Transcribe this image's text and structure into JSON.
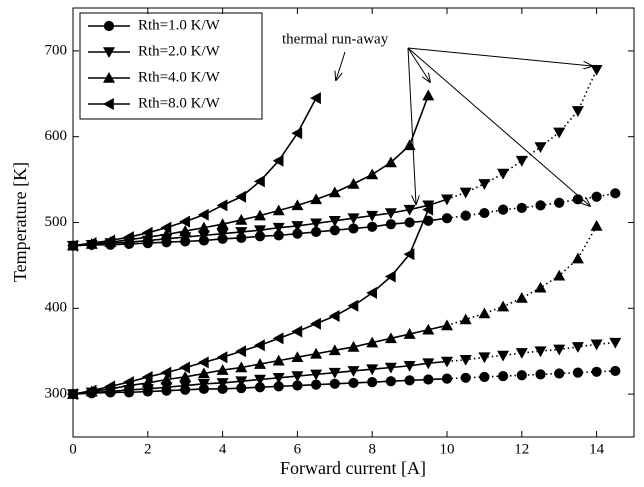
{
  "chart_data": {
    "type": "line",
    "x_label": "Forward current [A]",
    "y_label": "Temperature [K]",
    "annotation": "thermal run-away",
    "legend": "upper left",
    "color": "#000000",
    "dotted_after": 10,
    "x": [
      0,
      0.5,
      1,
      1.5,
      2,
      2.5,
      3,
      3.5,
      4,
      4.5,
      5,
      5.5,
      6,
      6.5,
      7,
      7.5,
      8,
      8.5,
      9,
      9.5,
      10,
      10.5,
      11,
      11.5,
      12,
      12.5,
      13,
      13.5,
      14,
      14.5
    ],
    "xlim": [
      0,
      15
    ],
    "ylim": [
      250,
      750
    ],
    "xticks": [
      0,
      2,
      4,
      6,
      8,
      10,
      12,
      14
    ],
    "yticks": [
      300,
      400,
      500,
      600,
      700
    ],
    "series": [
      {
        "name": "Rth=1.0 K/W",
        "marker": "circle",
        "curves": [
          [
            300,
            301,
            302,
            302,
            303,
            304,
            305,
            306,
            306,
            307,
            308,
            309,
            310,
            311,
            312,
            313,
            314,
            315,
            316,
            317,
            318,
            319,
            320,
            321,
            322,
            323,
            324,
            325,
            326,
            327
          ],
          [
            473,
            474,
            474,
            475,
            476,
            477,
            478,
            479,
            481,
            482,
            484,
            485,
            487,
            489,
            491,
            493,
            495,
            498,
            500,
            502,
            505,
            508,
            511,
            515,
            517,
            520,
            523,
            527,
            530,
            534
          ]
        ]
      },
      {
        "name": "Rth=2.0 K/W",
        "marker": "triangle-down",
        "curves": [
          [
            300,
            302,
            303,
            305,
            306,
            308,
            310,
            312,
            313,
            315,
            317,
            319,
            321,
            323,
            325,
            327,
            329,
            331,
            333,
            336,
            338,
            340,
            343,
            345,
            348,
            350,
            352,
            355,
            358,
            360
          ],
          [
            473,
            474,
            476,
            477,
            479,
            481,
            483,
            485,
            487,
            489,
            491,
            494,
            496,
            499,
            502,
            505,
            508,
            511,
            515,
            520,
            527,
            535,
            545,
            557,
            572,
            588,
            605,
            630,
            678,
            null
          ]
        ]
      },
      {
        "name": "Rth=4.0 K/W",
        "marker": "triangle-up",
        "curves": [
          [
            300,
            303,
            306,
            310,
            313,
            317,
            320,
            324,
            328,
            331,
            335,
            339,
            343,
            347,
            351,
            355,
            360,
            365,
            370,
            375,
            380,
            387,
            394,
            402,
            412,
            424,
            438,
            458,
            496,
            null
          ],
          [
            473,
            475,
            477,
            480,
            483,
            486,
            490,
            494,
            498,
            503,
            508,
            514,
            520,
            527,
            535,
            545,
            556,
            570,
            590,
            648,
            null,
            null,
            null,
            null,
            null,
            null,
            null,
            null,
            null,
            null
          ]
        ]
      },
      {
        "name": "Rth=8.0 K/W",
        "marker": "triangle-left",
        "curves": [
          [
            300,
            304,
            309,
            314,
            320,
            325,
            331,
            337,
            343,
            350,
            357,
            365,
            373,
            382,
            391,
            403,
            418,
            437,
            463,
            515,
            null,
            null,
            null,
            null,
            null,
            null,
            null,
            null,
            null,
            null
          ],
          [
            473,
            476,
            479,
            483,
            488,
            494,
            501,
            509,
            520,
            530,
            548,
            572,
            604,
            645,
            null,
            null,
            null,
            null,
            null,
            null,
            null,
            null,
            null,
            null,
            null,
            null,
            null,
            null,
            null,
            null
          ]
        ]
      }
    ]
  }
}
